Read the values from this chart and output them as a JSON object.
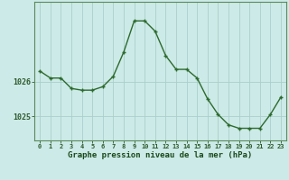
{
  "hours": [
    0,
    1,
    2,
    3,
    4,
    5,
    6,
    7,
    8,
    9,
    10,
    11,
    12,
    13,
    14,
    15,
    16,
    17,
    18,
    19,
    20,
    21,
    22,
    23
  ],
  "pressure": [
    1026.3,
    1026.1,
    1026.1,
    1025.8,
    1025.75,
    1025.75,
    1025.85,
    1026.15,
    1026.85,
    1027.75,
    1027.75,
    1027.45,
    1026.75,
    1026.35,
    1026.35,
    1026.1,
    1025.5,
    1025.05,
    1024.75,
    1024.65,
    1024.65,
    1024.65,
    1025.05,
    1025.55
  ],
  "ylim": [
    1024.3,
    1028.3
  ],
  "yticks": [
    1025,
    1026
  ],
  "xticks": [
    0,
    1,
    2,
    3,
    4,
    5,
    6,
    7,
    8,
    9,
    10,
    11,
    12,
    13,
    14,
    15,
    16,
    17,
    18,
    19,
    20,
    21,
    22,
    23
  ],
  "xlabel": "Graphe pression niveau de la mer (hPa)",
  "line_color": "#2d6a2d",
  "marker_color": "#2d6a2d",
  "bg_color": "#cceae7",
  "grid_color": "#aacfcc",
  "tick_label_color": "#2d5a2d",
  "xlabel_color": "#1a4a1a",
  "border_color": "#5a8a5a"
}
